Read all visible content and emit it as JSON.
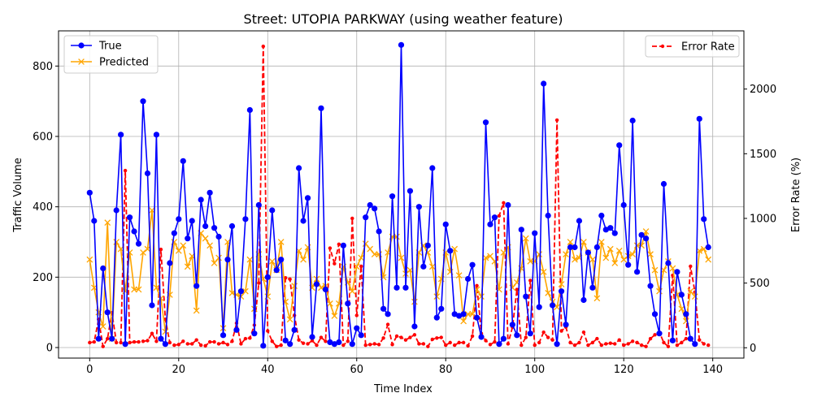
{
  "chart_data": {
    "type": "line",
    "title": "Street: UTOPIA PARKWAY (using weather feature)",
    "xlabel": "Time Index",
    "ylabel": "Traffic Volume",
    "y2label": "Error Rate (%)",
    "xlim": [
      -7,
      147
    ],
    "ylim": [
      -30,
      900
    ],
    "y2lim": [
      -80,
      2450
    ],
    "x_ticks": [
      0,
      20,
      40,
      60,
      80,
      100,
      120,
      140
    ],
    "y_ticks": [
      0,
      200,
      400,
      600,
      800
    ],
    "y2_ticks": [
      0,
      500,
      1000,
      1500,
      2000
    ],
    "grid": true,
    "legend_left": [
      "True",
      "Predicted"
    ],
    "legend_right": [
      "Error Rate"
    ],
    "colors": {
      "true": "#0000ff",
      "predicted": "#ffa500",
      "error": "#ff0000"
    },
    "series": [
      {
        "name": "True",
        "axis": "left",
        "values": [
          440,
          360,
          25,
          225,
          100,
          25,
          390,
          605,
          10,
          370,
          330,
          295,
          700,
          495,
          120,
          605,
          25,
          10,
          240,
          325,
          365,
          530,
          310,
          360,
          175,
          420,
          345,
          440,
          340,
          315,
          35,
          250,
          345,
          50,
          160,
          365,
          675,
          40,
          405,
          5,
          200,
          390,
          220,
          250,
          20,
          10,
          50,
          510,
          360,
          425,
          30,
          180,
          680,
          165,
          15,
          10,
          15,
          290,
          125,
          10,
          55,
          35,
          370,
          405,
          395,
          330,
          110,
          95,
          430,
          170,
          860,
          170,
          445,
          60,
          400,
          230,
          290,
          510,
          85,
          110,
          350,
          275,
          95,
          90,
          95,
          195,
          235,
          85,
          30,
          640,
          350,
          370,
          10,
          25,
          405,
          65,
          35,
          335,
          145,
          40,
          325,
          115,
          750,
          375,
          120,
          10,
          160,
          65,
          285,
          285,
          360,
          135,
          270,
          170,
          285,
          375,
          335,
          340,
          325,
          575,
          405,
          235,
          645,
          215,
          320,
          310,
          175,
          95,
          40,
          465,
          240,
          20,
          215,
          150,
          95,
          25,
          10,
          650,
          365,
          285
        ]
      },
      {
        "name": "Predicted",
        "axis": "left",
        "values": [
          250,
          170,
          100,
          60,
          355,
          25,
          300,
          280,
          160,
          270,
          165,
          165,
          270,
          280,
          390,
          170,
          140,
          45,
          150,
          300,
          275,
          290,
          230,
          260,
          105,
          325,
          310,
          290,
          240,
          255,
          55,
          300,
          155,
          150,
          145,
          160,
          250,
          110,
          265,
          195,
          145,
          245,
          220,
          300,
          130,
          80,
          175,
          275,
          250,
          285,
          170,
          195,
          170,
          175,
          125,
          90,
          125,
          230,
          185,
          160,
          230,
          255,
          295,
          280,
          265,
          265,
          200,
          270,
          315,
          315,
          255,
          210,
          220,
          130,
          270,
          290,
          270,
          230,
          145,
          195,
          270,
          215,
          280,
          205,
          75,
          95,
          95,
          165,
          145,
          255,
          260,
          245,
          165,
          270,
          285,
          170,
          185,
          225,
          310,
          245,
          245,
          265,
          215,
          155,
          130,
          115,
          180,
          265,
          300,
          250,
          255,
          300,
          270,
          250,
          140,
          300,
          255,
          280,
          240,
          275,
          250,
          260,
          265,
          290,
          290,
          330,
          265,
          220,
          160,
          220,
          245,
          225,
          150,
          110,
          75,
          160,
          145,
          275,
          280,
          250
        ]
      },
      {
        "name": "Error Rate",
        "axis": "right",
        "values": [
          40,
          45,
          220,
          10,
          70,
          270,
          40,
          40,
          1370,
          40,
          45,
          45,
          50,
          55,
          110,
          50,
          760,
          220,
          40,
          20,
          25,
          50,
          30,
          30,
          60,
          20,
          15,
          45,
          45,
          30,
          40,
          25,
          50,
          190,
          30,
          70,
          75,
          175,
          500,
          2330,
          130,
          50,
          10,
          20,
          540,
          530,
          250,
          60,
          35,
          30,
          55,
          20,
          80,
          50,
          770,
          650,
          800,
          20,
          50,
          1000,
          250,
          630,
          20,
          25,
          30,
          25,
          75,
          180,
          25,
          90,
          80,
          60,
          80,
          100,
          30,
          30,
          10,
          65,
          75,
          80,
          20,
          40,
          20,
          40,
          40,
          15,
          90,
          480,
          110,
          55,
          25,
          45,
          1020,
          1120,
          30,
          160,
          450,
          20,
          80,
          520,
          20,
          40,
          120,
          80,
          60,
          1760,
          130,
          160,
          40,
          20,
          40,
          120,
          20,
          40,
          70,
          20,
          30,
          35,
          30,
          60,
          20,
          30,
          50,
          40,
          20,
          10,
          70,
          100,
          120,
          40,
          10,
          560,
          20,
          40,
          70,
          630,
          430,
          60,
          30,
          20
        ]
      }
    ]
  }
}
